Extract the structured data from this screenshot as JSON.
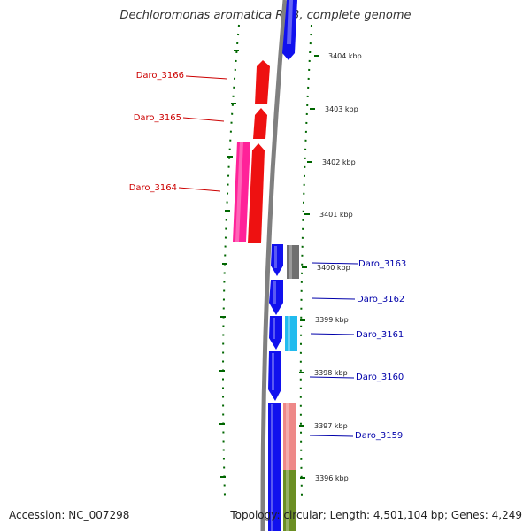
{
  "header": {
    "title": "Dechloromonas aromatica RCB, complete genome"
  },
  "footer": {
    "accession": "Accession: NC_007298",
    "summary": "Topology: circular; Length: 4,501,104 bp; Genes: 4,249"
  },
  "ticks": [
    {
      "label": "3404 kbp",
      "kbp": 3404
    },
    {
      "label": "3403 kbp",
      "kbp": 3403
    },
    {
      "label": "3402 kbp",
      "kbp": 3402
    },
    {
      "label": "3401 kbp",
      "kbp": 3401
    },
    {
      "label": "3400 kbp",
      "kbp": 3400
    },
    {
      "label": "3399 kbp",
      "kbp": 3399
    },
    {
      "label": "3398 kbp",
      "kbp": 3398
    },
    {
      "label": "3397 kbp",
      "kbp": 3397
    },
    {
      "label": "3396 kbp",
      "kbp": 3396
    }
  ],
  "genes_reverse": [
    {
      "label": "Daro_3166",
      "color": "#ee1111"
    },
    {
      "label": "Daro_3165",
      "color": "#ee1111"
    },
    {
      "label": "Daro_3164",
      "color": "#ee1111"
    }
  ],
  "genes_forward": [
    {
      "label": "Daro_3163",
      "color": "#1111ee"
    },
    {
      "label": "Daro_3162",
      "color": "#1111ee"
    },
    {
      "label": "Daro_3161",
      "color": "#1111ee"
    },
    {
      "label": "Daro_3160",
      "color": "#1111ee"
    },
    {
      "label": "Daro_3159",
      "color": "#1111ee"
    }
  ],
  "colors": {
    "reverse_label": "#cc0000",
    "forward_label": "#0000aa",
    "backbone": "#808080",
    "tick": "#006600",
    "cog_pink": "#ff2299",
    "cog_gray": "#707070",
    "cog_cyan": "#22bbee",
    "cog_salmon": "#ee8888",
    "cog_olive": "#6b8e23"
  }
}
